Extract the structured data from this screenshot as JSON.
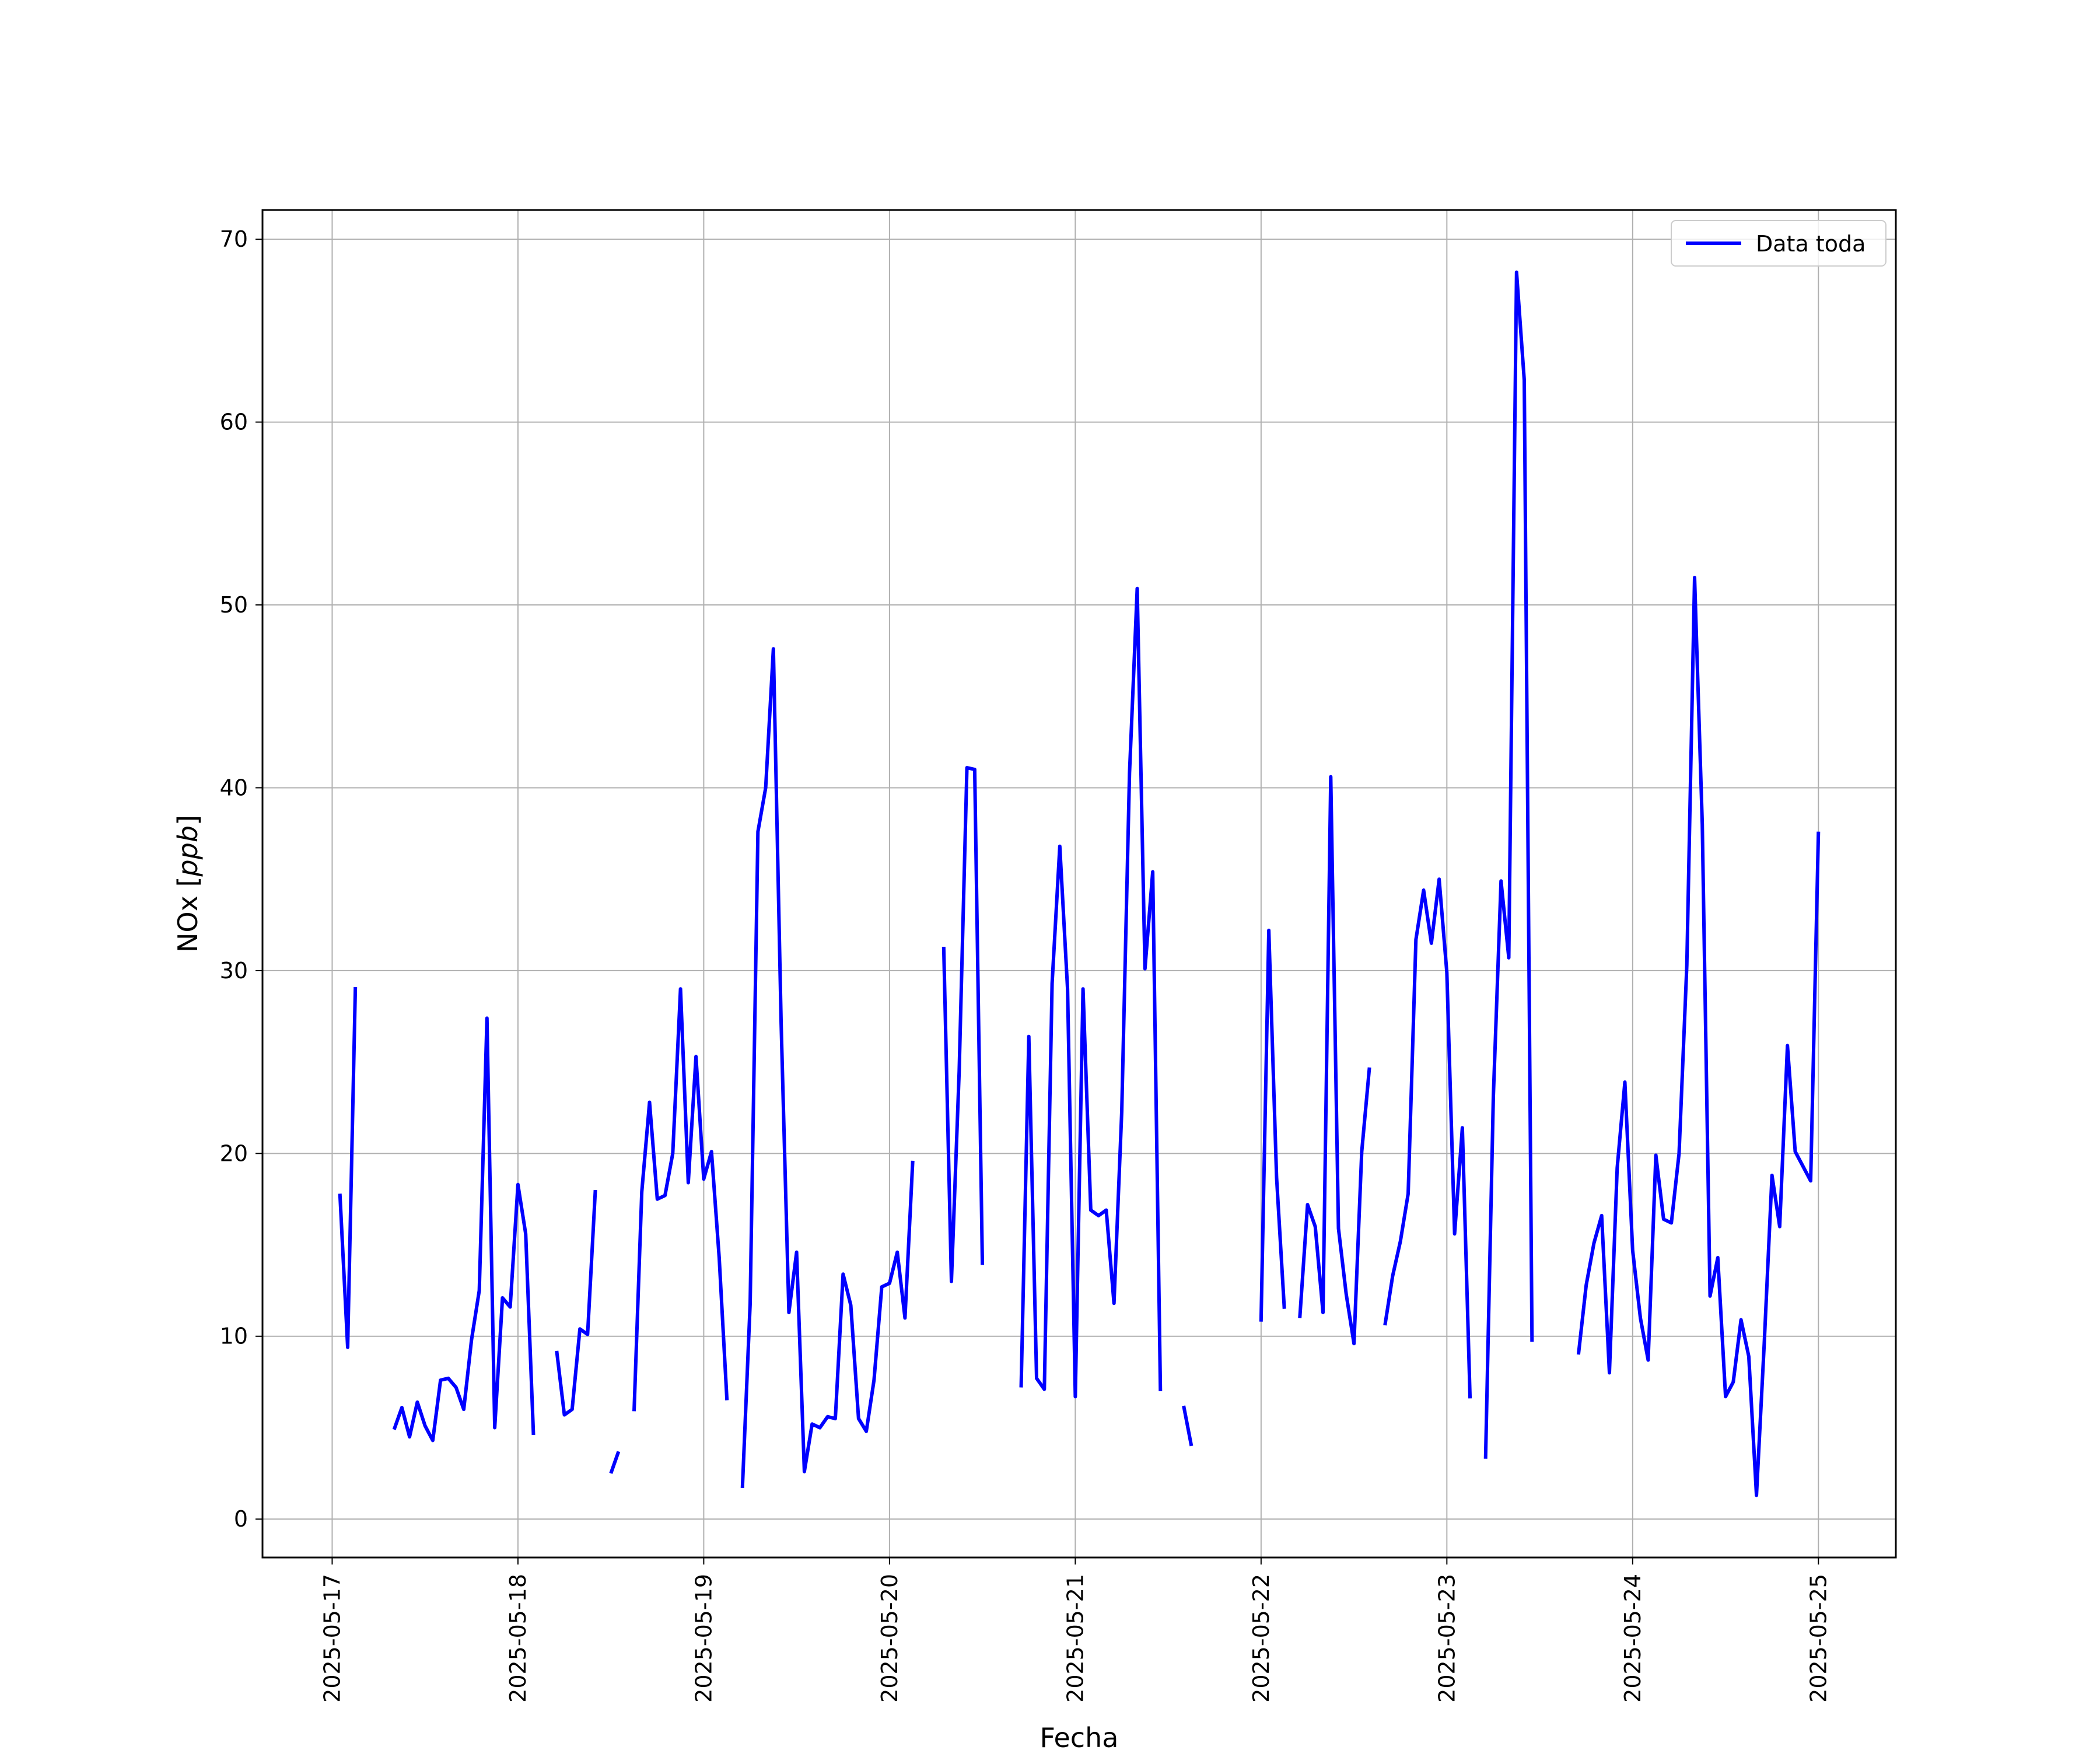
{
  "chart_data": {
    "type": "line",
    "title": "",
    "xlabel": "Fecha",
    "ylabel": "NOx [ppb]",
    "ylabel_parts": {
      "main": "NOx [",
      "italic": "ppb",
      "close": "]"
    },
    "x_ticks": [
      "2025-05-17",
      "2025-05-18",
      "2025-05-19",
      "2025-05-20",
      "2025-05-21",
      "2025-05-22",
      "2025-05-23",
      "2025-05-24",
      "2025-05-25"
    ],
    "y_ticks": [
      "0",
      "10",
      "20",
      "30",
      "40",
      "50",
      "60",
      "70"
    ],
    "ylim": [
      -2.1,
      71.6
    ],
    "xlim": [
      "2025-05-16 15:00",
      "2025-05-25 10:00"
    ],
    "grid": true,
    "legend_position": "top-right",
    "colors": {
      "series": "#0000ff",
      "grid": "#b0b0b0"
    },
    "series": [
      {
        "name": "Data toda",
        "points": [
          [
            "2025-05-17 01:00",
            17.8
          ],
          [
            "2025-05-17 02:00",
            9.4
          ],
          [
            "2025-05-17 03:00",
            29.1
          ],
          [
            "2025-05-17 04:00",
            null
          ],
          [
            "2025-05-17 08:00",
            4.9
          ],
          [
            "2025-05-17 09:00",
            6.1
          ],
          [
            "2025-05-17 10:00",
            4.5
          ],
          [
            "2025-05-17 11:00",
            6.4
          ],
          [
            "2025-05-17 12:00",
            5.1
          ],
          [
            "2025-05-17 13:00",
            4.3
          ],
          [
            "2025-05-17 14:00",
            7.6
          ],
          [
            "2025-05-17 15:00",
            7.7
          ],
          [
            "2025-05-17 16:00",
            7.2
          ],
          [
            "2025-05-17 17:00",
            6.0
          ],
          [
            "2025-05-17 18:00",
            9.8
          ],
          [
            "2025-05-17 19:00",
            12.5
          ],
          [
            "2025-05-17 20:00",
            27.4
          ],
          [
            "2025-05-17 21:00",
            5.0
          ],
          [
            "2025-05-17 22:00",
            12.1
          ],
          [
            "2025-05-17 23:00",
            11.6
          ],
          [
            "2025-05-18 00:00",
            18.3
          ],
          [
            "2025-05-18 01:00",
            15.6
          ],
          [
            "2025-05-18 02:00",
            4.6
          ],
          [
            "2025-05-18 03:00",
            null
          ],
          [
            "2025-05-18 05:00",
            9.2
          ],
          [
            "2025-05-18 06:00",
            5.7
          ],
          [
            "2025-05-18 07:00",
            6.0
          ],
          [
            "2025-05-18 08:00",
            10.4
          ],
          [
            "2025-05-18 09:00",
            10.1
          ],
          [
            "2025-05-18 10:00",
            18.0
          ],
          [
            "2025-05-18 11:00",
            null
          ],
          [
            "2025-05-18 12:00",
            2.5
          ],
          [
            "2025-05-18 13:00",
            3.7
          ],
          [
            "2025-05-18 14:00",
            null
          ],
          [
            "2025-05-18 15:00",
            5.9
          ],
          [
            "2025-05-18 16:00",
            17.9
          ],
          [
            "2025-05-18 17:00",
            22.8
          ],
          [
            "2025-05-18 18:00",
            17.5
          ],
          [
            "2025-05-18 19:00",
            17.7
          ],
          [
            "2025-05-18 20:00",
            20.0
          ],
          [
            "2025-05-18 21:00",
            29.0
          ],
          [
            "2025-05-18 22:00",
            18.4
          ],
          [
            "2025-05-18 23:00",
            25.3
          ],
          [
            "2025-05-19 00:00",
            18.6
          ],
          [
            "2025-05-19 01:00",
            20.1
          ],
          [
            "2025-05-19 02:00",
            14.3
          ],
          [
            "2025-05-19 03:00",
            6.5
          ],
          [
            "2025-05-19 04:00",
            null
          ],
          [
            "2025-05-19 05:00",
            1.7
          ],
          [
            "2025-05-19 06:00",
            11.8
          ],
          [
            "2025-05-19 07:00",
            37.6
          ],
          [
            "2025-05-19 08:00",
            40.0
          ],
          [
            "2025-05-19 09:00",
            47.6
          ],
          [
            "2025-05-19 10:00",
            27.1
          ],
          [
            "2025-05-19 11:00",
            11.3
          ],
          [
            "2025-05-19 12:00",
            14.6
          ],
          [
            "2025-05-19 13:00",
            2.6
          ],
          [
            "2025-05-19 14:00",
            5.2
          ],
          [
            "2025-05-19 15:00",
            5.0
          ],
          [
            "2025-05-19 16:00",
            5.6
          ],
          [
            "2025-05-19 17:00",
            5.5
          ],
          [
            "2025-05-19 18:00",
            13.4
          ],
          [
            "2025-05-19 19:00",
            11.7
          ],
          [
            "2025-05-19 20:00",
            5.5
          ],
          [
            "2025-05-19 21:00",
            4.8
          ],
          [
            "2025-05-19 22:00",
            7.6
          ],
          [
            "2025-05-19 23:00",
            12.7
          ],
          [
            "2025-05-20 00:00",
            12.9
          ],
          [
            "2025-05-20 01:00",
            14.6
          ],
          [
            "2025-05-20 02:00",
            11.0
          ],
          [
            "2025-05-20 03:00",
            19.6
          ],
          [
            "2025-05-20 04:00",
            null
          ],
          [
            "2025-05-20 07:00",
            31.3
          ],
          [
            "2025-05-20 08:00",
            13.0
          ],
          [
            "2025-05-20 09:00",
            24.5
          ],
          [
            "2025-05-20 10:00",
            41.1
          ],
          [
            "2025-05-20 11:00",
            41.0
          ],
          [
            "2025-05-20 12:00",
            13.9
          ],
          [
            "2025-05-20 13:00",
            null
          ],
          [
            "2025-05-20 17:00",
            7.2
          ],
          [
            "2025-05-20 18:00",
            26.4
          ],
          [
            "2025-05-20 19:00",
            7.7
          ],
          [
            "2025-05-20 20:00",
            7.1
          ],
          [
            "2025-05-20 21:00",
            29.3
          ],
          [
            "2025-05-20 22:00",
            36.8
          ],
          [
            "2025-05-20 23:00",
            29.0
          ],
          [
            "2025-05-21 00:00",
            6.7
          ],
          [
            "2025-05-21 01:00",
            29.0
          ],
          [
            "2025-05-21 02:00",
            16.9
          ],
          [
            "2025-05-21 03:00",
            16.6
          ],
          [
            "2025-05-21 04:00",
            16.9
          ],
          [
            "2025-05-21 05:00",
            11.8
          ],
          [
            "2025-05-21 06:00",
            22.3
          ],
          [
            "2025-05-21 07:00",
            40.8
          ],
          [
            "2025-05-21 08:00",
            50.9
          ],
          [
            "2025-05-21 09:00",
            30.1
          ],
          [
            "2025-05-21 10:00",
            35.4
          ],
          [
            "2025-05-21 11:00",
            7.0
          ],
          [
            "2025-05-21 12:00",
            null
          ],
          [
            "2025-05-21 14:00",
            6.2
          ],
          [
            "2025-05-21 15:00",
            4.0
          ],
          [
            "2025-05-21 16:00",
            null
          ],
          [
            "2025-05-22 00:00",
            10.8
          ],
          [
            "2025-05-22 01:00",
            32.2
          ],
          [
            "2025-05-22 02:00",
            18.7
          ],
          [
            "2025-05-22 03:00",
            11.5
          ],
          [
            "2025-05-22 04:00",
            null
          ],
          [
            "2025-05-22 05:00",
            11.0
          ],
          [
            "2025-05-22 06:00",
            17.2
          ],
          [
            "2025-05-22 07:00",
            16.0
          ],
          [
            "2025-05-22 08:00",
            11.3
          ],
          [
            "2025-05-22 09:00",
            40.6
          ],
          [
            "2025-05-22 10:00",
            15.9
          ],
          [
            "2025-05-22 11:00",
            12.3
          ],
          [
            "2025-05-22 12:00",
            9.6
          ],
          [
            "2025-05-22 13:00",
            20.1
          ],
          [
            "2025-05-22 14:00",
            24.7
          ],
          [
            "2025-05-22 15:00",
            null
          ],
          [
            "2025-05-22 16:00",
            10.6
          ],
          [
            "2025-05-22 17:00",
            13.3
          ],
          [
            "2025-05-22 18:00",
            15.2
          ],
          [
            "2025-05-22 19:00",
            17.8
          ],
          [
            "2025-05-22 20:00",
            31.7
          ],
          [
            "2025-05-22 21:00",
            34.4
          ],
          [
            "2025-05-22 22:00",
            31.5
          ],
          [
            "2025-05-22 23:00",
            35.0
          ],
          [
            "2025-05-23 00:00",
            29.9
          ],
          [
            "2025-05-23 01:00",
            15.6
          ],
          [
            "2025-05-23 02:00",
            21.4
          ],
          [
            "2025-05-23 03:00",
            6.6
          ],
          [
            "2025-05-23 04:00",
            null
          ],
          [
            "2025-05-23 05:00",
            3.3
          ],
          [
            "2025-05-23 06:00",
            23.1
          ],
          [
            "2025-05-23 07:00",
            34.9
          ],
          [
            "2025-05-23 08:00",
            30.7
          ],
          [
            "2025-05-23 09:00",
            68.2
          ],
          [
            "2025-05-23 10:00",
            62.3
          ],
          [
            "2025-05-23 11:00",
            9.7
          ],
          [
            "2025-05-23 12:00",
            null
          ],
          [
            "2025-05-23 17:00",
            9.0
          ],
          [
            "2025-05-23 18:00",
            12.8
          ],
          [
            "2025-05-23 19:00",
            15.1
          ],
          [
            "2025-05-23 20:00",
            16.6
          ],
          [
            "2025-05-23 21:00",
            8.0
          ],
          [
            "2025-05-23 22:00",
            19.2
          ],
          [
            "2025-05-23 23:00",
            23.9
          ],
          [
            "2025-05-24 00:00",
            14.7
          ],
          [
            "2025-05-24 01:00",
            11.0
          ],
          [
            "2025-05-24 02:00",
            8.7
          ],
          [
            "2025-05-24 03:00",
            19.9
          ],
          [
            "2025-05-24 04:00",
            16.4
          ],
          [
            "2025-05-24 05:00",
            16.2
          ],
          [
            "2025-05-24 06:00",
            20.0
          ],
          [
            "2025-05-24 07:00",
            30.3
          ],
          [
            "2025-05-24 08:00",
            51.5
          ],
          [
            "2025-05-24 09:00",
            38.0
          ],
          [
            "2025-05-24 10:00",
            12.2
          ],
          [
            "2025-05-24 11:00",
            14.3
          ],
          [
            "2025-05-24 12:00",
            6.7
          ],
          [
            "2025-05-24 13:00",
            7.5
          ],
          [
            "2025-05-24 14:00",
            10.9
          ],
          [
            "2025-05-24 15:00",
            8.9
          ],
          [
            "2025-05-24 16:00",
            1.3
          ],
          [
            "2025-05-24 17:00",
            9.6
          ],
          [
            "2025-05-24 18:00",
            18.8
          ],
          [
            "2025-05-24 19:00",
            16.0
          ],
          [
            "2025-05-24 20:00",
            25.9
          ],
          [
            "2025-05-24 21:00",
            20.1
          ],
          [
            "2025-05-24 22:00",
            19.3
          ],
          [
            "2025-05-24 23:00",
            18.5
          ],
          [
            "2025-05-25 00:00",
            37.6
          ]
        ]
      }
    ]
  }
}
